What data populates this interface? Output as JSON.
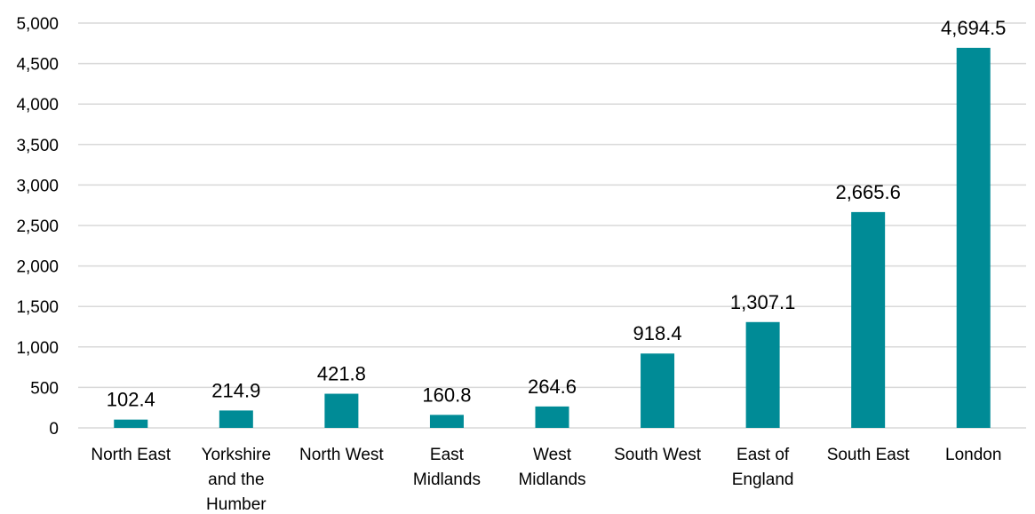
{
  "chart_data": {
    "type": "bar",
    "title": "",
    "xlabel": "",
    "ylabel": "",
    "categories": [
      [
        "North East"
      ],
      [
        "Yorkshire",
        "and the",
        "Humber"
      ],
      [
        "North West"
      ],
      [
        "East",
        "Midlands"
      ],
      [
        "West",
        "Midlands"
      ],
      [
        "South West"
      ],
      [
        "East of",
        "England"
      ],
      [
        "South East"
      ],
      [
        "London"
      ]
    ],
    "values": [
      102.4,
      214.9,
      421.8,
      160.8,
      264.6,
      918.4,
      1307.1,
      2665.6,
      4694.5
    ],
    "value_labels": [
      "102.4",
      "214.9",
      "421.8",
      "160.8",
      "264.6",
      "918.4",
      "1,307.1",
      "2,665.6",
      "4,694.5"
    ],
    "ylim": [
      0,
      5000
    ],
    "yticks": [
      0,
      500,
      1000,
      1500,
      2000,
      2500,
      3000,
      3500,
      4000,
      4500,
      5000
    ],
    "ytick_labels": [
      "0",
      "500",
      "1,000",
      "1,500",
      "2,000",
      "2,500",
      "3,000",
      "3,500",
      "4,000",
      "4,500",
      "5,000"
    ],
    "grid": true,
    "legend": "none",
    "bar_color": "#008b96"
  }
}
